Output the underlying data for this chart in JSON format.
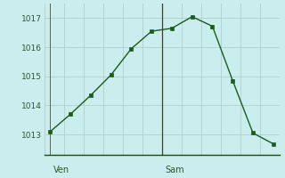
{
  "x_values": [
    0,
    1,
    2,
    3,
    4,
    5,
    6,
    7,
    8,
    9,
    10,
    11
  ],
  "y_values": [
    1013.1,
    1013.7,
    1014.35,
    1015.05,
    1015.95,
    1016.55,
    1016.65,
    1017.05,
    1016.72,
    1014.85,
    1013.05,
    1012.68
  ],
  "line_color": "#1a5c1a",
  "marker_color": "#1a5c1a",
  "bg_color": "#caeeed",
  "grid_color": "#b0cece",
  "axis_color": "#1a4a1a",
  "yticks": [
    1013,
    1014,
    1015,
    1016,
    1017
  ],
  "ylim": [
    1012.3,
    1017.5
  ],
  "xlim": [
    -0.3,
    11.3
  ],
  "ven_x": 0,
  "sam_x": 5.5,
  "tick_label_color": "#2a5a2a",
  "tick_label_size": 6.5,
  "day_label_size": 7,
  "n_xgrid": 12
}
